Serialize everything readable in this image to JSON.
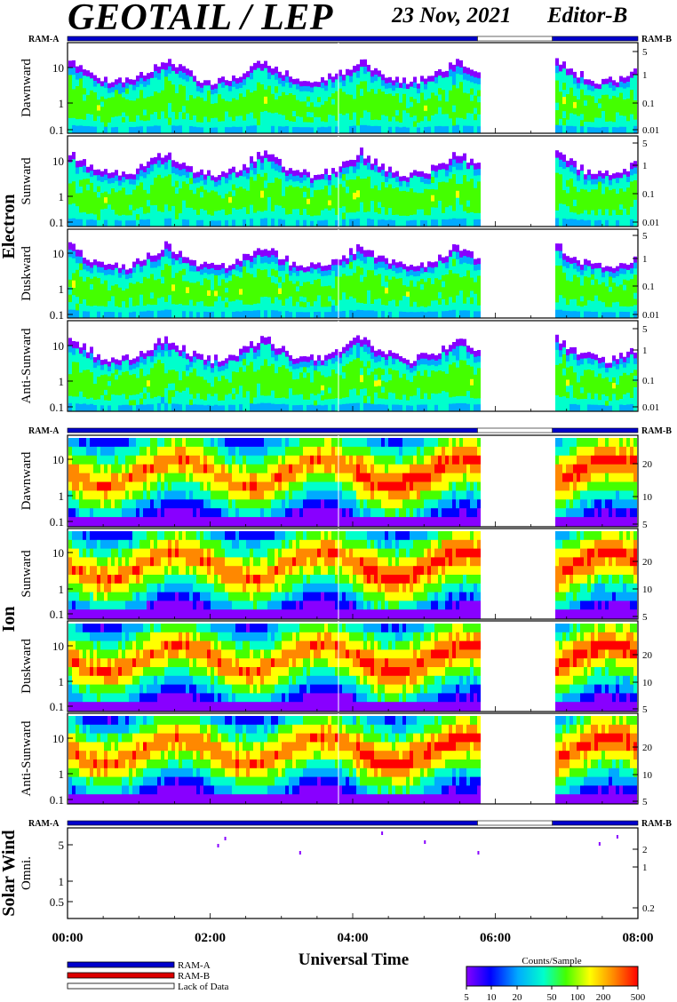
{
  "header": {
    "title": "GEOTAIL / LEP",
    "date": "23 Nov, 2021",
    "editor": "Editor-B"
  },
  "ram_labels": {
    "a": "RAM-A",
    "b": "RAM-B"
  },
  "groups": [
    {
      "name": "Electron",
      "panel_ids": [
        0,
        1,
        2,
        3
      ]
    },
    {
      "name": "Ion",
      "panel_ids": [
        4,
        5,
        6,
        7
      ]
    },
    {
      "name": "Solar Wind",
      "panel_ids": [
        8
      ]
    }
  ],
  "panels": [
    {
      "id": 0,
      "label": "Dawnward",
      "left_ticks": [
        "10",
        "1",
        "0.1"
      ],
      "right_ticks": [
        "5",
        "1",
        "0.1",
        "0.01"
      ]
    },
    {
      "id": 1,
      "label": "Sunward",
      "left_ticks": [
        "10",
        "1",
        "0.1"
      ],
      "right_ticks": [
        "5",
        "1",
        "0.1",
        "0.01"
      ]
    },
    {
      "id": 2,
      "label": "Duskward",
      "left_ticks": [
        "10",
        "1",
        "0.1"
      ],
      "right_ticks": [
        "5",
        "1",
        "0.1",
        "0.01"
      ]
    },
    {
      "id": 3,
      "label": "Anti-Sunward",
      "left_ticks": [
        "10",
        "1",
        "0.1"
      ],
      "right_ticks": [
        "5",
        "1",
        "0.1",
        "0.01"
      ]
    },
    {
      "id": 4,
      "label": "Dawnward",
      "left_ticks": [
        "10",
        "1",
        "0.1"
      ],
      "right_ticks": [
        "20",
        "10",
        "5"
      ]
    },
    {
      "id": 5,
      "label": "Sunward",
      "left_ticks": [
        "10",
        "1",
        "0.1"
      ],
      "right_ticks": [
        "20",
        "10",
        "5"
      ]
    },
    {
      "id": 6,
      "label": "Duskward",
      "left_ticks": [
        "10",
        "1",
        "0.1"
      ],
      "right_ticks": [
        "20",
        "10",
        "5"
      ]
    },
    {
      "id": 7,
      "label": "Anti-Sunward",
      "left_ticks": [
        "10",
        "1",
        "0.1"
      ],
      "right_ticks": [
        "20",
        "10",
        "5"
      ]
    },
    {
      "id": 8,
      "label": "Omni.",
      "left_ticks": [
        "5",
        "1",
        "0.5"
      ],
      "right_ticks": [
        "2",
        "1",
        "0.2"
      ]
    }
  ],
  "x_axis": {
    "label": "Universal Time",
    "ticks": [
      "00:00",
      "02:00",
      "04:00",
      "06:00",
      "08:00"
    ],
    "range_hours": [
      0,
      8
    ]
  },
  "status_bar": {
    "segments": [
      {
        "start_h": 0.0,
        "end_h": 5.75,
        "mode": "RAM-A"
      },
      {
        "start_h": 5.75,
        "end_h": 6.8,
        "mode": "Lack of Data"
      },
      {
        "start_h": 6.8,
        "end_h": 8.0,
        "mode": "RAM-A"
      }
    ]
  },
  "legend": {
    "items": [
      {
        "label": "RAM-A",
        "color": "#0000cc"
      },
      {
        "label": "RAM-B",
        "color": "#dd0000"
      },
      {
        "label": "Lack of Data",
        "color": "#ffffff"
      }
    ]
  },
  "colorbar": {
    "title": "Counts/Sample",
    "ticks": [
      "5",
      "10",
      "20",
      "50",
      "100",
      "200",
      "500"
    ],
    "colors": [
      "#8800ff",
      "#0000ff",
      "#00aaff",
      "#00ffcc",
      "#44ff00",
      "#ffff00",
      "#ff8800",
      "#ff0000"
    ]
  },
  "chart_data": {
    "type": "heatmap",
    "xlabel": "Universal Time",
    "x_range_hours": [
      0,
      8
    ],
    "data_gap_hours": [
      5.75,
      6.8
    ],
    "colorbar_title": "Counts/Sample",
    "colorbar_range": [
      5,
      500
    ]
  }
}
